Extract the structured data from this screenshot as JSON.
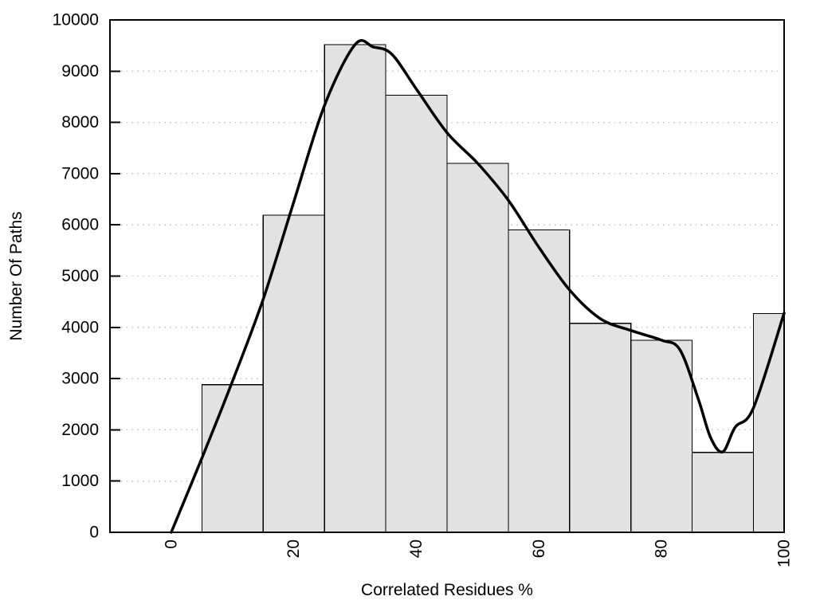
{
  "chart_data": {
    "type": "bar",
    "subtype": "histogram-with-smooth-curve",
    "title": "",
    "xlabel": "Correlated Residues %",
    "ylabel": "Number Of Paths",
    "xlim": [
      -10,
      100
    ],
    "ylim": [
      0,
      10000
    ],
    "x_tick_values": [
      0,
      20,
      40,
      60,
      80,
      100
    ],
    "x_tick_labels": [
      "0",
      "20",
      "40",
      "60",
      "80",
      "100"
    ],
    "x_tick_rotation_deg": -90,
    "y_tick_values": [
      0,
      1000,
      2000,
      3000,
      4000,
      5000,
      6000,
      7000,
      8000,
      9000,
      10000
    ],
    "y_tick_labels": [
      "0",
      "1000",
      "2000",
      "3000",
      "4000",
      "5000",
      "6000",
      "7000",
      "8000",
      "9000",
      "10000"
    ],
    "grid": {
      "horizontal": true,
      "vertical": false,
      "style": "dotted",
      "color": "#bcbcbc"
    },
    "legend": null,
    "bars": [
      {
        "x_from": 5,
        "x_to": 15,
        "value": 2880
      },
      {
        "x_from": 15,
        "x_to": 25,
        "value": 6190
      },
      {
        "x_from": 25,
        "x_to": 35,
        "value": 9520
      },
      {
        "x_from": 35,
        "x_to": 45,
        "value": 8530
      },
      {
        "x_from": 45,
        "x_to": 55,
        "value": 7200
      },
      {
        "x_from": 55,
        "x_to": 65,
        "value": 5900
      },
      {
        "x_from": 65,
        "x_to": 75,
        "value": 4080
      },
      {
        "x_from": 75,
        "x_to": 85,
        "value": 3750
      },
      {
        "x_from": 85,
        "x_to": 95,
        "value": 1560
      },
      {
        "x_from": 95,
        "x_to": 100,
        "value": 4270
      }
    ],
    "curve_series": {
      "name": "smoothed-path-count-curve",
      "points": [
        [
          0,
          0
        ],
        [
          5,
          1450
        ],
        [
          10,
          2950
        ],
        [
          15,
          4550
        ],
        [
          20,
          6450
        ],
        [
          25,
          8330
        ],
        [
          30,
          9520
        ],
        [
          33,
          9470
        ],
        [
          36,
          9330
        ],
        [
          40,
          8650
        ],
        [
          45,
          7800
        ],
        [
          50,
          7200
        ],
        [
          55,
          6480
        ],
        [
          60,
          5560
        ],
        [
          65,
          4730
        ],
        [
          70,
          4170
        ],
        [
          75,
          3940
        ],
        [
          80,
          3750
        ],
        [
          83,
          3560
        ],
        [
          86,
          2600
        ],
        [
          88,
          1850
        ],
        [
          90,
          1570
        ],
        [
          92,
          2050
        ],
        [
          95,
          2430
        ],
        [
          100,
          4280
        ]
      ]
    },
    "colors": {
      "background": "#ffffff",
      "bar_fill": "#e2e2e2",
      "bar_stroke": "#000000",
      "curve": "#000000",
      "axis": "#000000",
      "text": "#000000",
      "grid": "#bcbcbc"
    }
  }
}
